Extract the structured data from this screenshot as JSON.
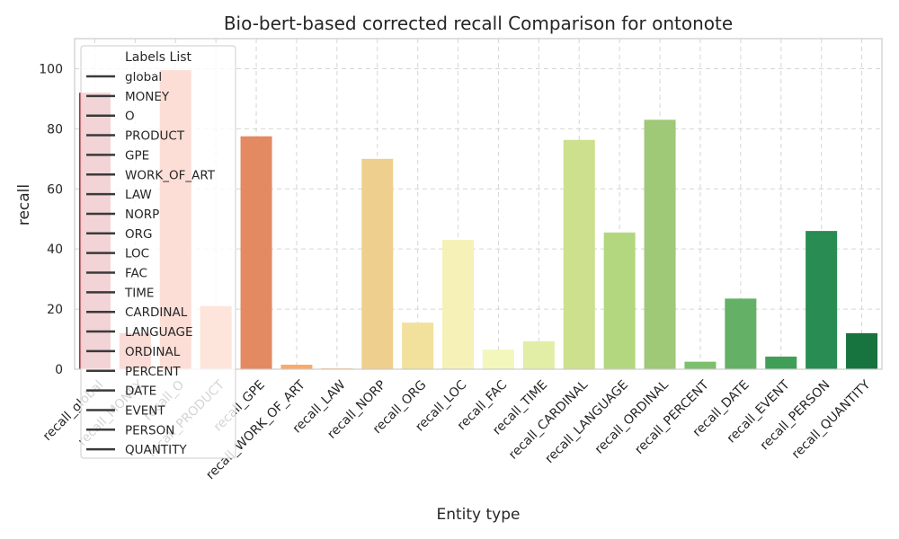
{
  "chart_data": {
    "type": "bar",
    "title": "Bio-bert-based corrected recall Comparison for ontonote",
    "xlabel": "Entity type",
    "ylabel": "recall",
    "ylim": [
      0,
      110
    ],
    "yticks": [
      0,
      20,
      40,
      60,
      80,
      100
    ],
    "grid": true,
    "legend": {
      "title": "Labels List",
      "placement": "top-left",
      "entries": [
        "global",
        "MONEY",
        "O",
        "PRODUCT",
        "GPE",
        "WORK_OF_ART",
        "LAW",
        "NORP",
        "ORG",
        "LOC",
        "FAC",
        "TIME",
        "CARDINAL",
        "LANGUAGE",
        "ORDINAL",
        "PERCENT",
        "DATE",
        "EVENT",
        "PERSON",
        "QUANTITY"
      ]
    },
    "categories": [
      "recall_global",
      "recall_MONEY",
      "recall_O",
      "recall_PRODUCT",
      "recall_GPE",
      "recall_WORK_OF_ART",
      "recall_LAW",
      "recall_NORP",
      "recall_ORG",
      "recall_LOC",
      "recall_FAC",
      "recall_TIME",
      "recall_CARDINAL",
      "recall_LANGUAGE",
      "recall_ORDINAL",
      "recall_PERCENT",
      "recall_DATE",
      "recall_EVENT",
      "recall_PERSON",
      "recall_QUANTITY"
    ],
    "values": [
      92,
      12,
      99.5,
      21,
      77.5,
      1.5,
      0.3,
      70,
      15.5,
      43,
      6.5,
      9.3,
      76.3,
      45.5,
      83,
      2.5,
      23.5,
      4.2,
      46,
      12
    ],
    "colors": [
      "#be2633",
      "#e34a33",
      "#f05d3b",
      "#f57f4c",
      "#e48a62",
      "#fca968",
      "#fdbe76",
      "#eecf8d",
      "#f1e19c",
      "#f6f1b7",
      "#f3f7bb",
      "#e2eea6",
      "#cce08d",
      "#b3d77f",
      "#9fc877",
      "#7cbf6c",
      "#64b066",
      "#3f9f56",
      "#288c53",
      "#18743f"
    ]
  }
}
